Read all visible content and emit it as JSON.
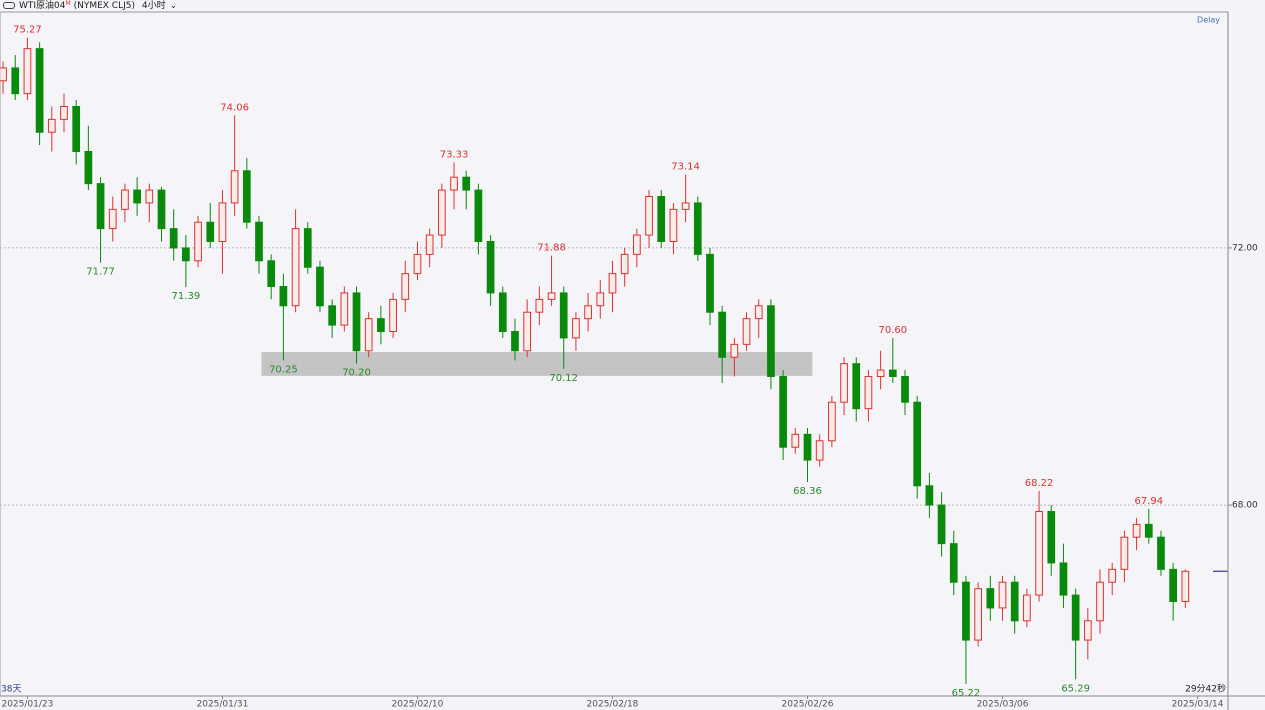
{
  "header": {
    "symbol": "WTI原油04",
    "sup": "M",
    "contract": "(NYMEX CLJ5)",
    "interval": "4小时",
    "delay": "Delay",
    "range_label": "38天",
    "countdown": "29分42秒"
  },
  "chart_data": {
    "type": "candlestick",
    "up_color": "#e0322d",
    "down_color": "#0a8a0a",
    "grid": true,
    "xlim": [
      -0.25,
      100.5
    ],
    "ylim": [
      65.03,
      75.67
    ],
    "yticks": [
      {
        "value": 68,
        "label": "68.00"
      },
      {
        "value": 72,
        "label": "72.00"
      }
    ],
    "xticks": [
      {
        "value": 2,
        "label": "2025/01/23"
      },
      {
        "value": 18,
        "label": "2025/01/31"
      },
      {
        "value": 34,
        "label": "2025/02/10"
      },
      {
        "value": 50,
        "label": "2025/02/18"
      },
      {
        "value": 66,
        "label": "2025/02/26"
      },
      {
        "value": 82,
        "label": "2025/03/06"
      },
      {
        "value": 98,
        "label": "2025/03/14"
      }
    ],
    "zone": {
      "x": [
        21.2,
        66.4
      ],
      "y": [
        70.01,
        70.38
      ],
      "color": "#c4c4c4"
    },
    "last_price": 66.97,
    "candles": [
      [
        74.6,
        74.9,
        74.4,
        74.8
      ],
      [
        74.8,
        75.0,
        74.3,
        74.4
      ],
      [
        74.4,
        75.27,
        74.3,
        75.1
      ],
      [
        75.1,
        75.2,
        73.6,
        73.8
      ],
      [
        73.8,
        74.2,
        73.5,
        74.0
      ],
      [
        74.0,
        74.4,
        73.8,
        74.2
      ],
      [
        74.2,
        74.3,
        73.3,
        73.5
      ],
      [
        73.5,
        73.9,
        72.9,
        73.0
      ],
      [
        73.0,
        73.1,
        71.77,
        72.3
      ],
      [
        72.3,
        72.8,
        72.1,
        72.6
      ],
      [
        72.6,
        73.0,
        72.4,
        72.9
      ],
      [
        72.9,
        73.1,
        72.5,
        72.7
      ],
      [
        72.7,
        73.0,
        72.4,
        72.9
      ],
      [
        72.9,
        72.95,
        72.1,
        72.3
      ],
      [
        72.3,
        72.6,
        71.8,
        72.0
      ],
      [
        72.0,
        72.2,
        71.39,
        71.8
      ],
      [
        71.8,
        72.5,
        71.7,
        72.4
      ],
      [
        72.4,
        72.7,
        72.0,
        72.1
      ],
      [
        72.1,
        72.9,
        71.6,
        72.7
      ],
      [
        72.7,
        74.06,
        72.5,
        73.2
      ],
      [
        73.2,
        73.4,
        72.3,
        72.4
      ],
      [
        72.4,
        72.5,
        71.6,
        71.8
      ],
      [
        71.8,
        71.9,
        71.2,
        71.4
      ],
      [
        71.4,
        71.6,
        70.25,
        71.1
      ],
      [
        71.1,
        72.6,
        71.0,
        72.3
      ],
      [
        72.3,
        72.4,
        71.6,
        71.7
      ],
      [
        71.7,
        71.8,
        71.0,
        71.1
      ],
      [
        71.1,
        71.2,
        70.6,
        70.8
      ],
      [
        70.8,
        71.4,
        70.7,
        71.3
      ],
      [
        71.3,
        71.4,
        70.2,
        70.4
      ],
      [
        70.4,
        71.0,
        70.3,
        70.9
      ],
      [
        70.9,
        71.1,
        70.5,
        70.7
      ],
      [
        70.7,
        71.3,
        70.6,
        71.2
      ],
      [
        71.2,
        71.8,
        71.0,
        71.6
      ],
      [
        71.6,
        72.1,
        71.5,
        71.9
      ],
      [
        71.9,
        72.3,
        71.7,
        72.2
      ],
      [
        72.2,
        73.0,
        72.0,
        72.9
      ],
      [
        72.9,
        73.33,
        72.6,
        73.1
      ],
      [
        73.1,
        73.2,
        72.6,
        72.9
      ],
      [
        72.9,
        73.0,
        71.9,
        72.1
      ],
      [
        72.1,
        72.2,
        71.1,
        71.3
      ],
      [
        71.3,
        71.4,
        70.6,
        70.7
      ],
      [
        70.7,
        70.9,
        70.25,
        70.4
      ],
      [
        70.4,
        71.2,
        70.3,
        71.0
      ],
      [
        71.0,
        71.4,
        70.8,
        71.2
      ],
      [
        71.2,
        71.88,
        71.1,
        71.3
      ],
      [
        71.3,
        71.4,
        70.12,
        70.6
      ],
      [
        70.6,
        71.0,
        70.4,
        70.9
      ],
      [
        70.9,
        71.3,
        70.7,
        71.1
      ],
      [
        71.1,
        71.5,
        70.9,
        71.3
      ],
      [
        71.3,
        71.8,
        71.0,
        71.6
      ],
      [
        71.6,
        72.0,
        71.4,
        71.9
      ],
      [
        71.9,
        72.3,
        71.7,
        72.2
      ],
      [
        72.2,
        72.9,
        72.0,
        72.8
      ],
      [
        72.8,
        72.9,
        72.0,
        72.1
      ],
      [
        72.1,
        72.7,
        71.9,
        72.6
      ],
      [
        72.6,
        73.14,
        72.4,
        72.7
      ],
      [
        72.7,
        72.8,
        71.8,
        71.9
      ],
      [
        71.9,
        72.0,
        70.8,
        71.0
      ],
      [
        71.0,
        71.1,
        69.9,
        70.3
      ],
      [
        70.3,
        70.6,
        70.0,
        70.5
      ],
      [
        70.5,
        71.0,
        70.4,
        70.9
      ],
      [
        70.9,
        71.2,
        70.6,
        71.1
      ],
      [
        71.1,
        71.2,
        69.8,
        70.0
      ],
      [
        70.0,
        70.1,
        68.7,
        68.9
      ],
      [
        68.9,
        69.2,
        68.8,
        69.1
      ],
      [
        69.1,
        69.2,
        68.36,
        68.7
      ],
      [
        68.7,
        69.1,
        68.6,
        69.0
      ],
      [
        69.0,
        69.7,
        68.9,
        69.6
      ],
      [
        69.6,
        70.3,
        69.4,
        70.2
      ],
      [
        70.2,
        70.3,
        69.3,
        69.5
      ],
      [
        69.5,
        70.1,
        69.3,
        70.0
      ],
      [
        70.0,
        70.4,
        69.8,
        70.1
      ],
      [
        70.1,
        70.6,
        69.9,
        70.0
      ],
      [
        70.0,
        70.1,
        69.4,
        69.6
      ],
      [
        69.6,
        69.7,
        68.1,
        68.3
      ],
      [
        68.3,
        68.5,
        67.8,
        68.0
      ],
      [
        68.0,
        68.2,
        67.2,
        67.4
      ],
      [
        67.4,
        67.6,
        66.6,
        66.8
      ],
      [
        66.8,
        66.9,
        65.22,
        65.9
      ],
      [
        65.9,
        66.8,
        65.8,
        66.7
      ],
      [
        66.7,
        66.9,
        66.2,
        66.4
      ],
      [
        66.4,
        66.9,
        66.2,
        66.8
      ],
      [
        66.8,
        66.9,
        66.0,
        66.2
      ],
      [
        66.2,
        66.7,
        66.1,
        66.6
      ],
      [
        66.6,
        68.22,
        66.5,
        67.9
      ],
      [
        67.9,
        68.0,
        66.9,
        67.1
      ],
      [
        67.1,
        67.4,
        66.4,
        66.6
      ],
      [
        66.6,
        66.7,
        65.29,
        65.9
      ],
      [
        65.9,
        66.4,
        65.6,
        66.2
      ],
      [
        66.2,
        67.0,
        66.0,
        66.8
      ],
      [
        66.8,
        67.1,
        66.6,
        67.0
      ],
      [
        67.0,
        67.6,
        66.8,
        67.5
      ],
      [
        67.5,
        67.8,
        67.3,
        67.7
      ],
      [
        67.7,
        67.94,
        67.4,
        67.5
      ],
      [
        67.5,
        67.6,
        66.9,
        67.0
      ],
      [
        67.0,
        67.1,
        66.2,
        66.5
      ],
      [
        66.5,
        67.0,
        66.4,
        66.97
      ]
    ],
    "annotations": [
      {
        "x": 2,
        "value": 75.27,
        "label": "75.27",
        "side": "high"
      },
      {
        "x": 8,
        "value": 71.77,
        "label": "71.77",
        "side": "low"
      },
      {
        "x": 15,
        "value": 71.39,
        "label": "71.39",
        "side": "low"
      },
      {
        "x": 19,
        "value": 74.06,
        "label": "74.06",
        "side": "high"
      },
      {
        "x": 23,
        "value": 70.25,
        "label": "70.25",
        "side": "low"
      },
      {
        "x": 29,
        "value": 70.2,
        "label": "70.20",
        "side": "low"
      },
      {
        "x": 37,
        "value": 73.33,
        "label": "73.33",
        "side": "high"
      },
      {
        "x": 45,
        "value": 71.88,
        "label": "71.88",
        "side": "high"
      },
      {
        "x": 46,
        "value": 70.12,
        "label": "70.12",
        "side": "low"
      },
      {
        "x": 56,
        "value": 73.14,
        "label": "73.14",
        "side": "high"
      },
      {
        "x": 66,
        "value": 68.36,
        "label": "68.36",
        "side": "low"
      },
      {
        "x": 73,
        "value": 70.6,
        "label": "70.60",
        "side": "high"
      },
      {
        "x": 79,
        "value": 65.22,
        "label": "65.22",
        "side": "low"
      },
      {
        "x": 85,
        "value": 68.22,
        "label": "68.22",
        "side": "high"
      },
      {
        "x": 88,
        "value": 65.29,
        "label": "65.29",
        "side": "low"
      },
      {
        "x": 94,
        "value": 67.94,
        "label": "67.94",
        "side": "high"
      }
    ]
  }
}
